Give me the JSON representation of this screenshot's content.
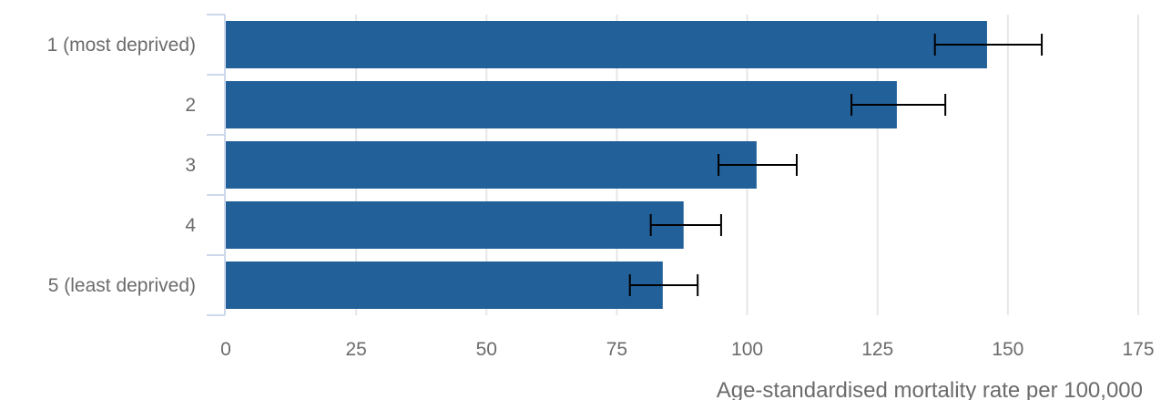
{
  "chart_data": {
    "type": "bar",
    "orientation": "horizontal",
    "title": "",
    "xlabel": "Age-standardised mortality rate per 100,000",
    "ylabel": "",
    "xlim": [
      0,
      175
    ],
    "xticks": [
      0,
      25,
      50,
      75,
      100,
      125,
      150,
      175
    ],
    "grid": true,
    "legend": "none",
    "bar_color": "#22609a",
    "gridline_color": "#e6e6e6",
    "axis_color": "#cdd9ea",
    "error_bar_color": "#000000",
    "categories": [
      "1 (most deprived)",
      "2",
      "3",
      "4",
      "5 (least deprived)"
    ],
    "values": [
      146,
      128.7,
      101.8,
      87.8,
      83.8
    ],
    "error_low": [
      136,
      120,
      94.5,
      81.5,
      77.5
    ],
    "error_high": [
      156.5,
      138,
      109.5,
      95,
      90.5
    ]
  }
}
